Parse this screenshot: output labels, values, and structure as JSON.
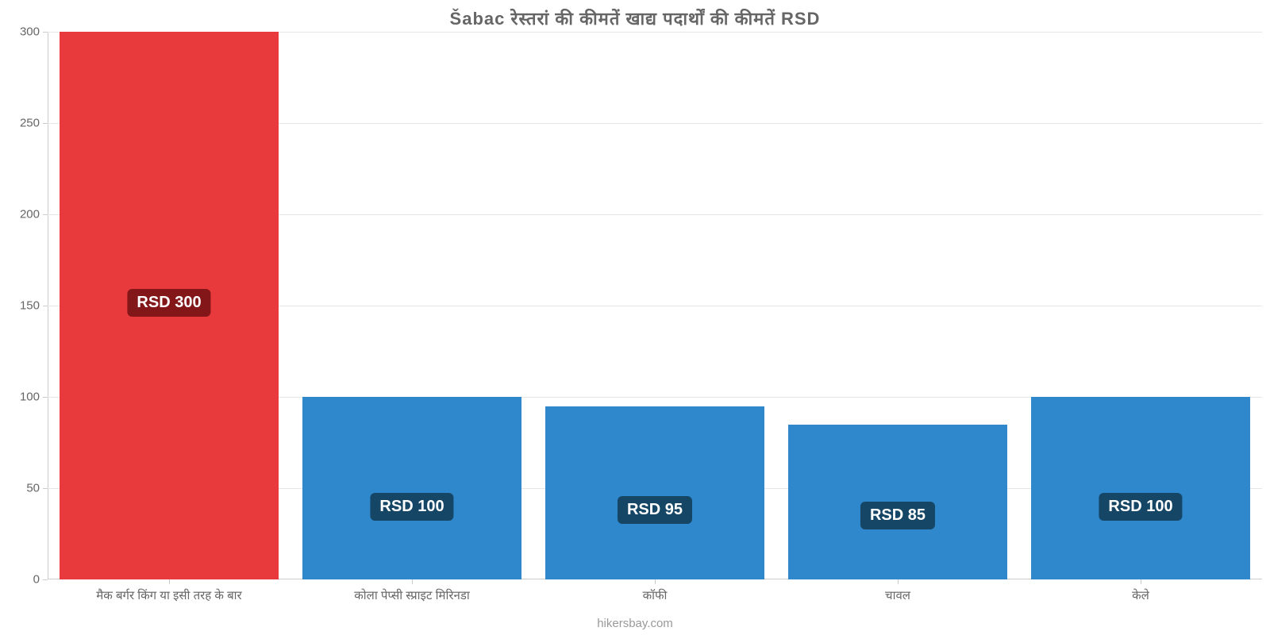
{
  "chart": {
    "type": "bar",
    "title": "Šabac रेस्तरां     की     कीमतें     खाद्य     पदार्थों     की     कीमतें     RSD",
    "title_fontsize": 22,
    "title_color": "#666666",
    "background_color": "#ffffff",
    "grid_color": "#e6e6e6",
    "axis_color": "#cccccc",
    "tick_label_color": "#666666",
    "tick_label_fontsize": 15,
    "ylim": [
      0,
      300
    ],
    "ytick_step": 50,
    "yticks": [
      0,
      50,
      100,
      150,
      200,
      250,
      300
    ],
    "bar_width_ratio": 0.9,
    "badge_fontsize": 20,
    "badge_text_color": "#ffffff",
    "categories": [
      "मैक बर्गर किंग या इसी तरह के बार",
      "कोला पेप्सी स्प्राइट मिरिनडा",
      "कॉफी",
      "चावल",
      "केले"
    ],
    "values": [
      300,
      100,
      95,
      85,
      100
    ],
    "value_labels": [
      "RSD 300",
      "RSD 100",
      "RSD 95",
      "RSD 85",
      "RSD 100"
    ],
    "bar_colors": [
      "#e8393c",
      "#2f87cc",
      "#2f87cc",
      "#2f87cc",
      "#2f87cc"
    ],
    "badge_bg_colors": [
      "#821618",
      "#164666",
      "#164666",
      "#164666",
      "#164666"
    ],
    "watermark": "hikersbay.com",
    "watermark_color": "#999999",
    "watermark_fontsize": 15
  }
}
